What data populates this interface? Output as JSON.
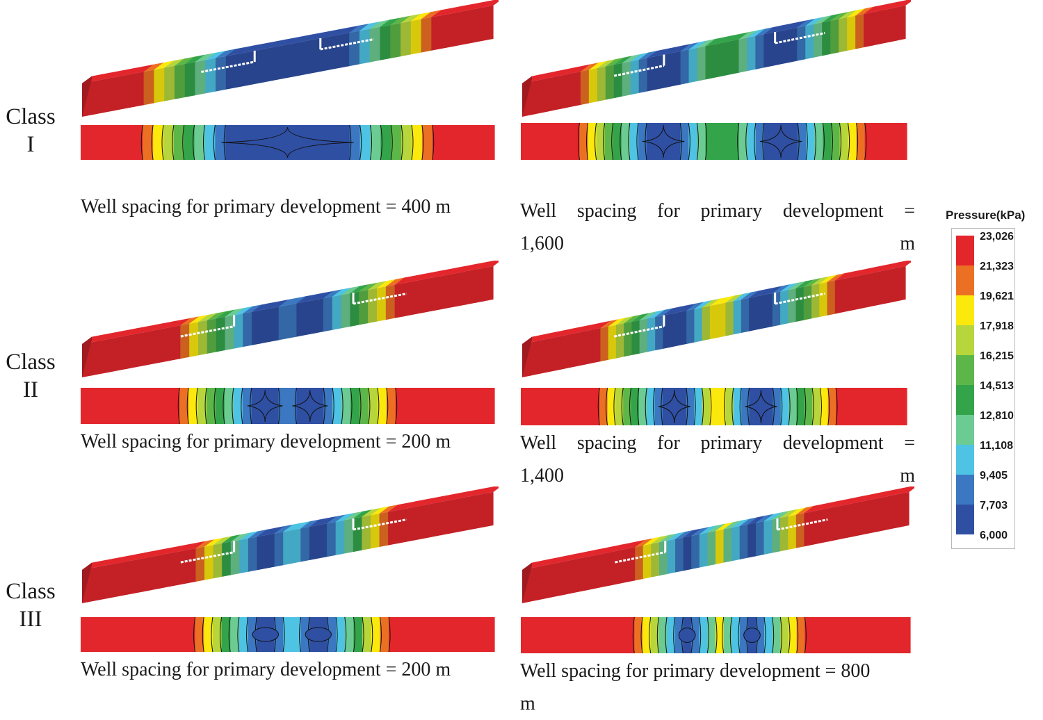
{
  "rows": [
    {
      "label_top": "Class",
      "label_bottom": "I"
    },
    {
      "label_top": "Class",
      "label_bottom": "II"
    },
    {
      "label_top": "Class",
      "label_bottom": "III"
    }
  ],
  "panels": [
    {
      "id": "c1-left",
      "caption": "Well spacing for primary development = 400 m",
      "caption_line2": ""
    },
    {
      "id": "c1-right",
      "caption": "Well spacing for primary development =",
      "caption_line2": "1,600 m"
    },
    {
      "id": "c2-left",
      "caption": "Well spacing for primary development = 200 m",
      "caption_line2": ""
    },
    {
      "id": "c2-right",
      "caption": "Well spacing for primary development =",
      "caption_line2": "1,400 m"
    },
    {
      "id": "c3-left",
      "caption": "Well spacing for primary development = 200 m",
      "caption_line2": ""
    },
    {
      "id": "c3-right",
      "caption": "Well spacing for primary development = 800",
      "caption_line2": "m"
    }
  ],
  "legend": {
    "title": "Pressure(kPa)",
    "ticks": [
      "23,026",
      "21,323",
      "19,621",
      "17,918",
      "16,215",
      "14,513",
      "12,810",
      "11,108",
      "9,405",
      "7,703",
      "6,000"
    ],
    "colors": [
      "#e3262c",
      "#ec7024",
      "#fbe80d",
      "#b6d63c",
      "#5db748",
      "#33a44a",
      "#6ccb92",
      "#4ec3e3",
      "#3b78c1",
      "#2f4fa3"
    ]
  }
}
